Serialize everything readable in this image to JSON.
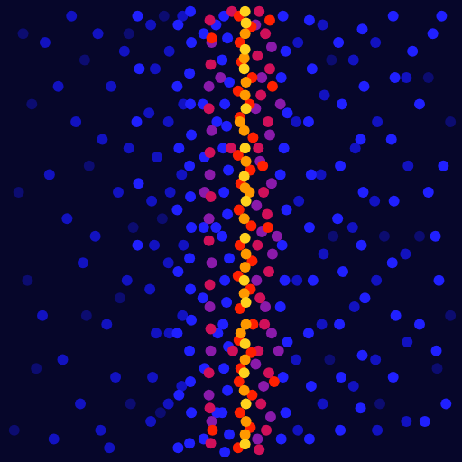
{
  "chart_data": {
    "type": "scatter",
    "xlim": [
      0,
      512
    ],
    "ylim": [
      0,
      512
    ],
    "grid": false,
    "tick_labels": false,
    "series": [
      {
        "color": "#ffd21e",
        "marker": "circle",
        "x": [
          272,
          273,
          272,
          271,
          273,
          272,
          271,
          273,
          272,
          271,
          273,
          272,
          271,
          273,
          272
        ],
        "values": [
          505,
          492,
          462,
          440,
          395,
          350,
          318,
          290,
          248,
          200,
          175,
          128,
          95,
          60,
          14
        ]
      },
      {
        "color": "#ff9900",
        "marker": "circle",
        "x": [
          272,
          271,
          273,
          272,
          271,
          273,
          272,
          271,
          273,
          272,
          271,
          273,
          272,
          271,
          273,
          272,
          266,
          277,
          267
        ],
        "values": [
          480,
          452,
          425,
          410,
          370,
          335,
          305,
          270,
          230,
          215,
          185,
          150,
          110,
          75,
          40,
          25,
          380,
          300,
          140
        ]
      },
      {
        "color": "#ff2000",
        "marker": "circle",
        "x": [
          265,
          279,
          266,
          268,
          280,
          264,
          277,
          266,
          281,
          264,
          278,
          267,
          265,
          279,
          266,
          280,
          264,
          278,
          266,
          281,
          265,
          279,
          267,
          265,
          280,
          266,
          278,
          264,
          300,
          303,
          305,
          298,
          292,
          234,
          235
        ],
        "values": [
          500,
          488,
          470,
          448,
          430,
          415,
          400,
          385,
          362,
          342,
          325,
          310,
          280,
          262,
          240,
          222,
          205,
          190,
          168,
          150,
          132,
          118,
          100,
          85,
          70,
          50,
          33,
          10,
          495,
          420,
          85,
          260,
          330,
          475,
          30
        ]
      },
      {
        "color": "#d0105a",
        "marker": "circle",
        "x": [
          288,
          295,
          286,
          300,
          290,
          298,
          287,
          293,
          297,
          286,
          299,
          289,
          294,
          287,
          299,
          290,
          296,
          288,
          232,
          233,
          231,
          232,
          233,
          231,
          232,
          233,
          231,
          232,
          233,
          257,
          256,
          258
        ],
        "values": [
          505,
          480,
          455,
          440,
          410,
          380,
          350,
          300,
          275,
          240,
          210,
          180,
          150,
          120,
          95,
          60,
          30,
          8,
          495,
          445,
          395,
          345,
          295,
          245,
          195,
          145,
          95,
          55,
          15,
          505,
          350,
          120
        ]
      },
      {
        "color": "#8a1aaa",
        "marker": "circle",
        "x": [
          284,
          302,
          291,
          284,
          300,
          289,
          302,
          285,
          291,
          303,
          285,
          295,
          302,
          284,
          293,
          301,
          286,
          234,
          231,
          234,
          232,
          231,
          234,
          232,
          233,
          231,
          234,
          312,
          308,
          310,
          226,
          244
        ],
        "values": [
          490,
          465,
          430,
          395,
          365,
          335,
          310,
          285,
          255,
          230,
          200,
          170,
          140,
          105,
          80,
          45,
          20,
          470,
          420,
          370,
          320,
          270,
          220,
          170,
          120,
          70,
          40,
          400,
          250,
          120,
          300,
          430
        ]
      },
      {
        "color": "#2020ff",
        "marker": "circle",
        "x": [
          248,
          252,
          246,
          254,
          249,
          251,
          247,
          253,
          248,
          252,
          246,
          254,
          249,
          251,
          247,
          253,
          248,
          252,
          246,
          254,
          249,
          210,
          211,
          209,
          210,
          211,
          209,
          210,
          211,
          209,
          210,
          211,
          209,
          210,
          211,
          209,
          196,
          195,
          197,
          195,
          196,
          195,
          197,
          196,
          315,
          318,
          313,
          320,
          316,
          312,
          319,
          314,
          317,
          312,
          320,
          315,
          318,
          313,
          345,
          348,
          344,
          347,
          345,
          349,
          344,
          347,
          345,
          378,
          382,
          380,
          377,
          383,
          379,
          381,
          380,
          405,
          407,
          403,
          406,
          404,
          408,
          405,
          403,
          440,
          442,
          438,
          441,
          439,
          443,
          440,
          470,
          485,
          495,
          480,
          492,
          470,
          488,
          500,
          476,
          497,
          462,
          489,
          225,
          224,
          226,
          225,
          224,
          226,
          225,
          239,
          240,
          239,
          241,
          240,
          150,
          152,
          149,
          151,
          150
        ],
        "values": [
          500,
          475,
          450,
          425,
          400,
          375,
          350,
          325,
          300,
          275,
          250,
          225,
          200,
          175,
          150,
          125,
          100,
          75,
          50,
          25,
          5,
          505,
          470,
          435,
          400,
          365,
          330,
          295,
          260,
          225,
          190,
          155,
          120,
          85,
          50,
          15,
          490,
          420,
          350,
          280,
          210,
          140,
          70,
          10,
          500,
          460,
          430,
          390,
          350,
          320,
          280,
          240,
          200,
          170,
          130,
          90,
          50,
          20,
          495,
          440,
          380,
          320,
          260,
          200,
          140,
          80,
          20,
          470,
          400,
          330,
          270,
          210,
          150,
          90,
          30,
          485,
          420,
          360,
          300,
          240,
          180,
          115,
          55,
          500,
          430,
          360,
          290,
          220,
          160,
          90,
          400,
          480,
          500,
          300,
          200,
          150,
          250,
          60,
          40,
          330,
          460,
          120,
          480,
          400,
          340,
          260,
          180,
          100,
          20,
          490,
          380,
          260,
          140,
          50,
          500,
          440,
          380,
          310,
          240
        ]
      },
      {
        "color": "#1212c0",
        "marker": "circle",
        "x": [
          165,
          170,
          163,
          172,
          166,
          169,
          164,
          171,
          167,
          165,
          105,
          120,
          135,
          110,
          128,
          102,
          138,
          115,
          125,
          108,
          140,
          118,
          45,
          60,
          80,
          50,
          70,
          88,
          42,
          65,
          85,
          55,
          75,
          332,
          330,
          333,
          331,
          330,
          332,
          360,
          362,
          358,
          361,
          359,
          360,
          395,
          397,
          394,
          396,
          395,
          420,
          422,
          419,
          421,
          420,
          422,
          455,
          457,
          454,
          456,
          455,
          186,
          185,
          187,
          185,
          186,
          185,
          201,
          202,
          200,
          202,
          201,
          200
        ],
        "values": [
          490,
          440,
          390,
          340,
          290,
          240,
          190,
          140,
          90,
          40,
          480,
          420,
          460,
          360,
          300,
          250,
          200,
          150,
          90,
          30,
          350,
          10,
          470,
          420,
          380,
          320,
          270,
          220,
          160,
          110,
          60,
          20,
          500,
          470,
          380,
          290,
          200,
          110,
          30,
          490,
          410,
          320,
          230,
          150,
          60,
          450,
          350,
          260,
          170,
          80,
          470,
          380,
          290,
          200,
          110,
          30,
          430,
          330,
          230,
          130,
          40,
          460,
          380,
          300,
          220,
          140,
          60,
          500,
          400,
          320,
          240,
          160,
          80
        ]
      },
      {
        "color": "#0c0c70",
        "marker": "circle",
        "x": [
          20,
          30,
          15,
          25,
          35,
          10,
          90,
          95,
          92,
          140,
          145,
          142,
          130,
          180,
          178,
          176,
          470,
          480,
          490,
          505,
          505,
          430,
          425,
          370,
          372,
          368
        ],
        "values": [
          480,
          400,
          300,
          200,
          100,
          30,
          450,
          330,
          160,
          480,
          260,
          60,
          180,
          500,
          270,
          50,
          250,
          430,
          100,
          380,
          160,
          250,
          60,
          450,
          250,
          110
        ]
      }
    ]
  }
}
